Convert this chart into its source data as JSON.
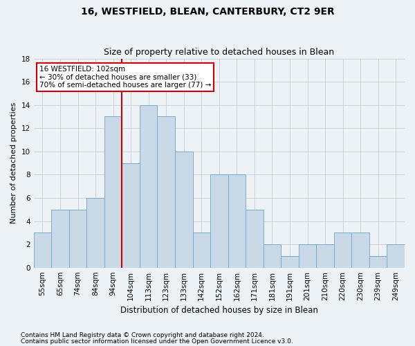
{
  "title1": "16, WESTFIELD, BLEAN, CANTERBURY, CT2 9ER",
  "title2": "Size of property relative to detached houses in Blean",
  "xlabel": "Distribution of detached houses by size in Blean",
  "ylabel": "Number of detached properties",
  "categories": [
    "55sqm",
    "65sqm",
    "74sqm",
    "84sqm",
    "94sqm",
    "104sqm",
    "113sqm",
    "123sqm",
    "133sqm",
    "142sqm",
    "152sqm",
    "162sqm",
    "171sqm",
    "181sqm",
    "191sqm",
    "201sqm",
    "210sqm",
    "220sqm",
    "230sqm",
    "239sqm",
    "249sqm"
  ],
  "values": [
    3,
    5,
    5,
    6,
    13,
    9,
    14,
    13,
    10,
    3,
    8,
    8,
    5,
    2,
    1,
    2,
    2,
    3,
    3,
    1,
    2
  ],
  "bar_color": "#c9d9e8",
  "bar_edge_color": "#7aaac8",
  "vline_color": "#cc0000",
  "annotation_line1": "16 WESTFIELD: 102sqm",
  "annotation_line2": "← 30% of detached houses are smaller (33)",
  "annotation_line3": "70% of semi-detached houses are larger (77) →",
  "annotation_box_facecolor": "#ffffff",
  "annotation_box_edgecolor": "#cc0000",
  "ylim": [
    0,
    18
  ],
  "yticks": [
    0,
    2,
    4,
    6,
    8,
    10,
    12,
    14,
    16,
    18
  ],
  "grid_color": "#cccccc",
  "footnote1": "Contains HM Land Registry data © Crown copyright and database right 2024.",
  "footnote2": "Contains public sector information licensed under the Open Government Licence v3.0.",
  "bg_color": "#edf2f7",
  "title1_fontsize": 10,
  "title2_fontsize": 9,
  "axis_fontsize": 8,
  "tick_fontsize": 7.5,
  "footnote_fontsize": 6.5
}
